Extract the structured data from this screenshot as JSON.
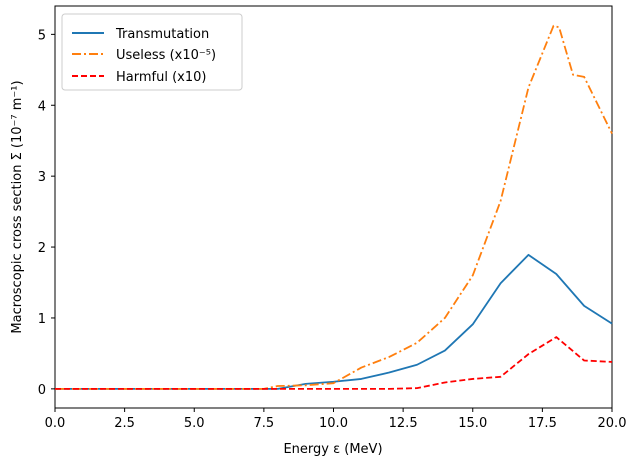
{
  "chart_data": {
    "type": "line",
    "xlabel": "Energy ε (MeV)",
    "ylabel": "Macroscopic cross section Σ (10⁻⁷ m⁻¹)",
    "xlim": [
      0,
      20
    ],
    "ylim": [
      -0.27,
      5.4
    ],
    "xticks": [
      0,
      2.5,
      5,
      7.5,
      10,
      12.5,
      15,
      17.5,
      20
    ],
    "xtick_labels": [
      "0.0",
      "2.5",
      "5.0",
      "7.5",
      "10.0",
      "12.5",
      "15.0",
      "17.5",
      "20.0"
    ],
    "yticks": [
      0,
      1,
      2,
      3,
      4,
      5
    ],
    "ytick_labels": [
      "0",
      "1",
      "2",
      "3",
      "4",
      "5"
    ],
    "grid": false,
    "legend_position": "top-left",
    "series": [
      {
        "name": "Transmutation",
        "color": "#1f77b4",
        "dash": "solid",
        "x": [
          0,
          8,
          9,
          10,
          11,
          12,
          13,
          14,
          15,
          16,
          17,
          18,
          19,
          20
        ],
        "y": [
          0,
          0,
          0.07,
          0.1,
          0.14,
          0.23,
          0.34,
          0.54,
          0.91,
          1.49,
          1.89,
          1.62,
          1.17,
          0.92
        ]
      },
      {
        "name": "Useless (x10⁻⁵)",
        "color": "#ff7f0e",
        "dash": "dashdot",
        "x": [
          0,
          7.5,
          8,
          9,
          10,
          11,
          12,
          13,
          14,
          15,
          16,
          17,
          17.9,
          18.1,
          18.6,
          19,
          20
        ],
        "y": [
          0,
          0,
          0.04,
          0.05,
          0.08,
          0.3,
          0.45,
          0.65,
          1.0,
          1.6,
          2.65,
          4.25,
          5.12,
          5.1,
          4.43,
          4.4,
          3.6
        ]
      },
      {
        "name": "Harmful (x10)",
        "color": "#ff0000",
        "dash": "dashed",
        "x": [
          0,
          8,
          9,
          10,
          11,
          12,
          13,
          14,
          15,
          16,
          17,
          18,
          19,
          20
        ],
        "y": [
          0,
          0,
          0,
          0,
          0,
          0,
          0.01,
          0.09,
          0.14,
          0.17,
          0.49,
          0.73,
          0.4,
          0.38
        ]
      }
    ]
  }
}
